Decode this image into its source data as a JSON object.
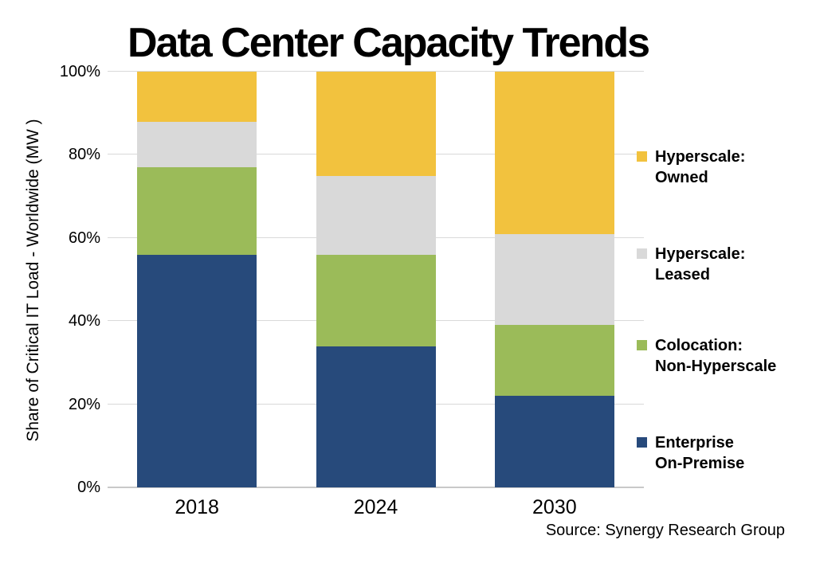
{
  "title": "Data Center Capacity Trends",
  "y_axis": {
    "title": "Share of Critical IT Load - Worldwide (MW )",
    "tick_labels": [
      "0%",
      "20%",
      "40%",
      "60%",
      "80%",
      "100%"
    ],
    "tick_values": [
      0,
      20,
      40,
      60,
      80,
      100
    ]
  },
  "x_axis": {
    "categories": [
      "2018",
      "2024",
      "2030"
    ]
  },
  "legend": {
    "items": [
      {
        "name": "Hyperscale: Owned",
        "lines": [
          "Hyperscale:",
          "Owned"
        ],
        "color": "#F2C23E"
      },
      {
        "name": "Hyperscale: Leased",
        "lines": [
          "Hyperscale:",
          "Leased"
        ],
        "color": "#D9D9D9"
      },
      {
        "name": "Colocation: Non-Hyperscale",
        "lines": [
          "Colocation:",
          "Non-Hyperscale"
        ],
        "color": "#9BBB59"
      },
      {
        "name": "Enterprise On-Premise",
        "lines": [
          "Enterprise",
          "On-Premise"
        ],
        "color": "#274A7B"
      }
    ]
  },
  "source": "Source: Synergy Research Group",
  "colors": {
    "hyperscale_owned": "#F2C23E",
    "hyperscale_leased": "#D9D9D9",
    "colocation": "#9BBB59",
    "enterprise": "#274A7B",
    "gridline": "#D9D9D9",
    "axis_line": "#C9C9C9",
    "text": "#000000",
    "background": "#FFFFFF"
  },
  "chart_data": {
    "type": "bar",
    "stacked": true,
    "title": "Data Center Capacity Trends",
    "xlabel": "",
    "ylabel": "Share of Critical IT Load - Worldwide (MW )",
    "ylim": [
      0,
      100
    ],
    "ytick_step": 20,
    "grid": true,
    "legend_position": "right",
    "categories": [
      "2018",
      "2024",
      "2030"
    ],
    "series": [
      {
        "name": "Enterprise On-Premise",
        "color": "#274A7B",
        "values": [
          56,
          34,
          22
        ]
      },
      {
        "name": "Colocation: Non-Hyperscale",
        "color": "#9BBB59",
        "values": [
          21,
          22,
          17
        ]
      },
      {
        "name": "Hyperscale: Leased",
        "color": "#D9D9D9",
        "values": [
          11,
          19,
          22
        ]
      },
      {
        "name": "Hyperscale: Owned",
        "color": "#F2C23E",
        "values": [
          12,
          25,
          39
        ]
      }
    ],
    "source": "Source: Synergy Research Group"
  }
}
